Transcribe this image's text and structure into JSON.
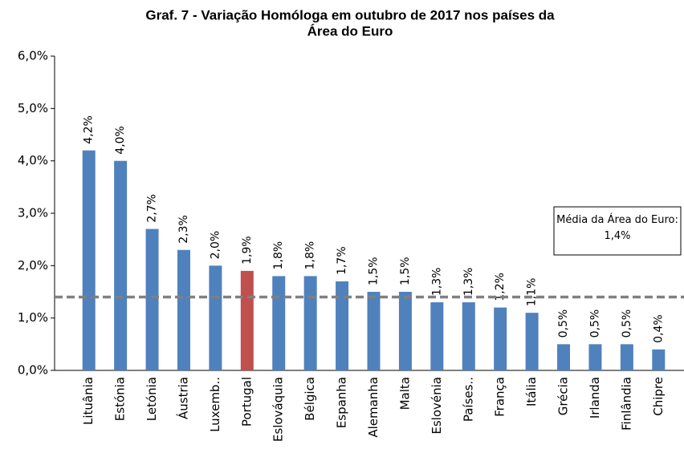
{
  "chart_data": {
    "type": "bar",
    "title": [
      "Graf. 7 - Variação Homóloga em outubro de 2017 nos países da",
      "Área do Euro"
    ],
    "categories": [
      "Lituânia",
      "Estónia",
      "Letónia",
      "Áustria",
      "Luxemb..",
      "Portugal",
      "Eslováquia",
      "Bélgica",
      "Espanha",
      "Alemanha",
      "Malta",
      "Eslovénia",
      "Países..",
      "França",
      "Itália",
      "Grécia",
      "Irlanda",
      "Finlândia",
      "Chipre"
    ],
    "values": [
      4.2,
      4.0,
      2.7,
      2.3,
      2.0,
      1.9,
      1.8,
      1.8,
      1.7,
      1.5,
      1.5,
      1.3,
      1.3,
      1.2,
      1.1,
      0.5,
      0.5,
      0.5,
      0.4
    ],
    "value_labels": [
      "4,2%",
      "4,0%",
      "2,7%",
      "2,3%",
      "2,0%",
      "1,9%",
      "1,8%",
      "1,8%",
      "1,7%",
      "1,5%",
      "1,5%",
      "1,3%",
      "1,3%",
      "1,2%",
      "1,1%",
      "0,5%",
      "0,5%",
      "0,5%",
      "0,4%"
    ],
    "colors": [
      "#4f81bd",
      "#4f81bd",
      "#4f81bd",
      "#4f81bd",
      "#4f81bd",
      "#c0504d",
      "#4f81bd",
      "#4f81bd",
      "#4f81bd",
      "#4f81bd",
      "#4f81bd",
      "#4f81bd",
      "#4f81bd",
      "#4f81bd",
      "#4f81bd",
      "#4f81bd",
      "#4f81bd",
      "#4f81bd",
      "#4f81bd"
    ],
    "ylim": [
      0,
      6
    ],
    "yticks": [
      {
        "value": 0,
        "label": "0,0%"
      },
      {
        "value": 1,
        "label": "1,0%"
      },
      {
        "value": 2,
        "label": "2,0%"
      },
      {
        "value": 3,
        "label": "3,0%"
      },
      {
        "value": 4,
        "label": "4,0%"
      },
      {
        "value": 5,
        "label": "5,0%"
      },
      {
        "value": 6,
        "label": "6,0%"
      }
    ],
    "reference_line": {
      "value": 1.4,
      "label": "Média da Área do Euro: 1,4%",
      "color": "#808080"
    }
  }
}
